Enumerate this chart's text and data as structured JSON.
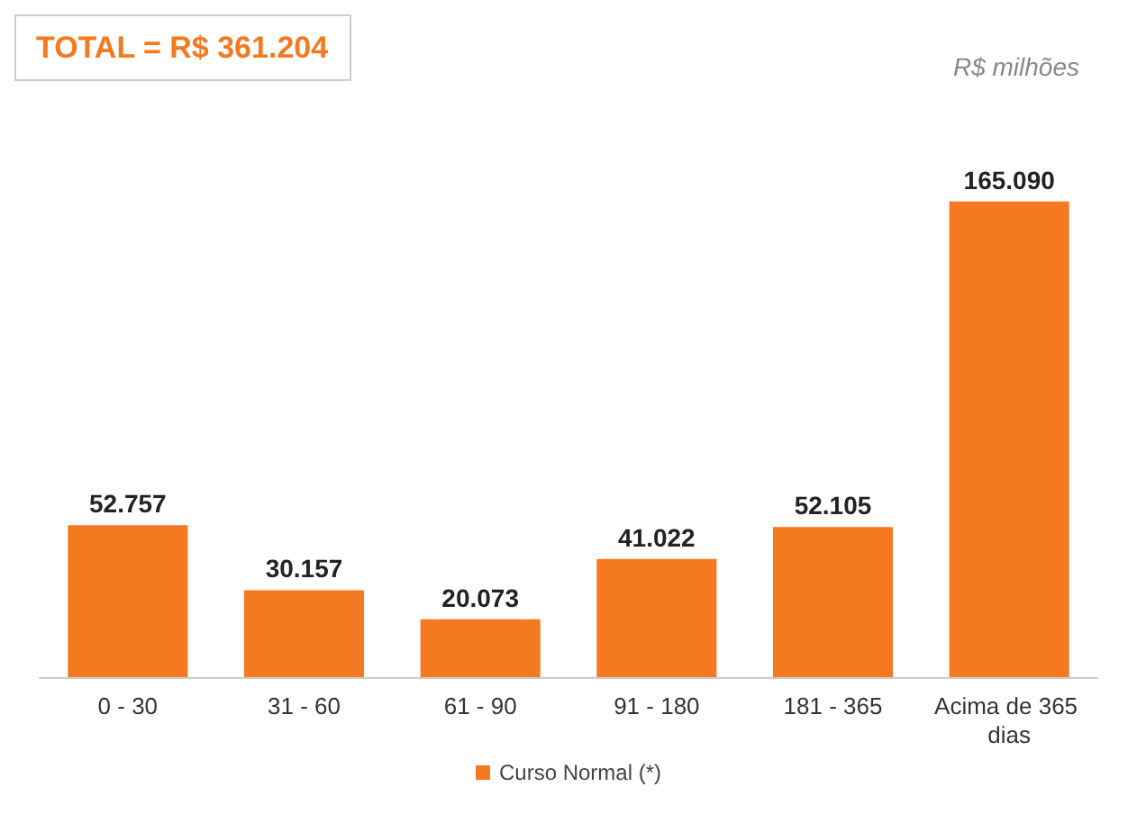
{
  "chart_data": {
    "type": "bar",
    "title": "TOTAL = R$ 361.204",
    "annotations": [
      "R$ milhões"
    ],
    "categories": [
      "0 - 30",
      "31 - 60",
      "61 - 90",
      "91 - 180",
      "181 - 365",
      "Acima de 365 dias"
    ],
    "series": [
      {
        "name": "Curso Normal (*)",
        "color": "#f47920",
        "values": [
          52757,
          30157,
          20073,
          41022,
          52105,
          165090
        ],
        "value_labels": [
          "52.757",
          "30.157",
          "20.073",
          "41.022",
          "52.105",
          "165.090"
        ]
      }
    ],
    "legend": "bottom"
  }
}
